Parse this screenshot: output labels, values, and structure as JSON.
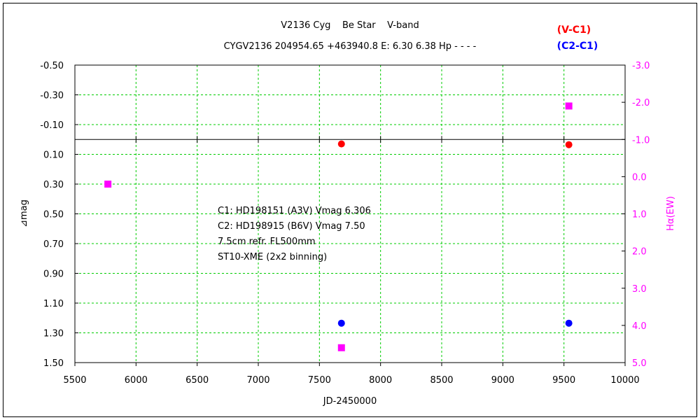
{
  "chart_data": {
    "type": "scatter",
    "title": "V2136 Cyg    Be Star    V-band",
    "subtitle": "CYGV2136 204954.65 +463940.8 E: 6.30 6.38 Hp - - - -",
    "xlabel": "JD-2450000",
    "ylabel": "⊿mag",
    "y2label": "Hα(EW)",
    "xlim": [
      5500,
      10000
    ],
    "ylim": [
      -0.5,
      1.5
    ],
    "y_inverted": true,
    "y2lim": [
      -3.0,
      5.0
    ],
    "y2_inverted": true,
    "x_ticks": [
      5500,
      6000,
      6500,
      7000,
      7500,
      8000,
      8500,
      9000,
      9500,
      10000
    ],
    "y_ticks": [
      "-0.50",
      "-0.30",
      "-0.10",
      "0.10",
      "0.30",
      "0.50",
      "0.70",
      "0.90",
      "1.10",
      "1.30",
      "1.50"
    ],
    "y2_ticks": [
      "-3.0",
      "-2.0",
      "-1.0",
      "0.0",
      "1.0",
      "2.0",
      "3.0",
      "4.0",
      "5.0"
    ],
    "grid": true,
    "reference_line_y": 0.0,
    "legend": [
      {
        "label": "(V-C1)",
        "color": "#ff0000"
      },
      {
        "label": "(C2-C1)",
        "color": "#0000ff"
      }
    ],
    "annotations": [
      "C1: HD198151 (A3V) Vmag 6.306",
      "C2: HD198915 (B6V) Vmag 7.50",
      "7.5cm refr. FL500mm",
      "ST10-XME (2x2 binning)"
    ],
    "series": [
      {
        "name": "(V-C1)",
        "color": "#ff0000",
        "marker": "circle",
        "axis": "left",
        "x": [
          7680,
          9540
        ],
        "y": [
          0.03,
          0.035
        ]
      },
      {
        "name": "(C2-C1)",
        "color": "#0000ff",
        "marker": "circle",
        "axis": "left",
        "x": [
          7680,
          9540
        ],
        "y": [
          1.235,
          1.235
        ]
      },
      {
        "name": "Hα(EW)",
        "color": "#ff00ff",
        "marker": "square",
        "axis": "right",
        "x": [
          5770,
          7680,
          9540
        ],
        "y": [
          0.2,
          4.6,
          -1.9
        ]
      }
    ]
  }
}
